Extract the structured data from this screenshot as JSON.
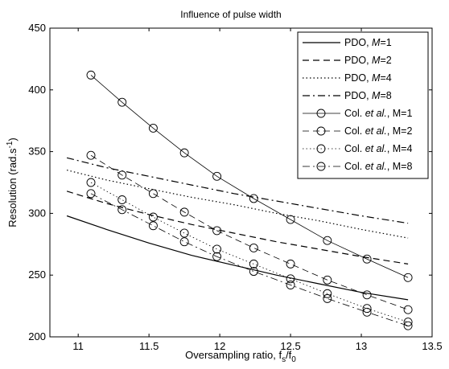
{
  "chart_data": {
    "type": "line",
    "title": "Influence of pulse width",
    "xlabel": {
      "main": "Oversampling ratio, f",
      "sub1": "s",
      "mid": "/f",
      "sub2": "0"
    },
    "ylabel": {
      "main": "Resolution (rad.s",
      "sup": "-1",
      "end": ")"
    },
    "xlim": [
      10.8,
      13.5
    ],
    "ylim": [
      200,
      450
    ],
    "xticks": [
      11,
      11.5,
      12,
      12.5,
      13,
      13.5
    ],
    "xtick_labels": [
      "11",
      "11.5",
      "12",
      "12.5",
      "13",
      "13.5"
    ],
    "yticks": [
      200,
      250,
      300,
      350,
      400,
      450
    ],
    "ytick_labels": [
      "200",
      "250",
      "300",
      "350",
      "400",
      "450"
    ],
    "grid": false,
    "legend_position": "top-right",
    "legend": [
      {
        "name": "PDO, ",
        "italic": "M",
        "suffix": "=1"
      },
      {
        "name": "PDO, ",
        "italic": "M",
        "suffix": "=2"
      },
      {
        "name": "PDO, ",
        "italic": "M",
        "suffix": "=4"
      },
      {
        "name": "PDO, ",
        "italic": "M",
        "suffix": "=8"
      },
      {
        "name": "Col. ",
        "italic": "et al.",
        "suffix": ", M=1"
      },
      {
        "name": "Col. ",
        "italic": "et al.",
        "suffix": ", M=2"
      },
      {
        "name": "Col. ",
        "italic": "et al.",
        "suffix": ", M=4"
      },
      {
        "name": "Col. ",
        "italic": "et al.",
        "suffix": ", M=8"
      }
    ],
    "series": [
      {
        "style": "solid",
        "marker": false,
        "x": [
          10.92,
          11.2,
          11.5,
          11.8,
          12.1,
          12.4,
          12.7,
          13.0,
          13.33
        ],
        "y": [
          298,
          287,
          276,
          266,
          258,
          250,
          243,
          236,
          230
        ]
      },
      {
        "style": "dashed",
        "marker": false,
        "x": [
          10.92,
          11.2,
          11.5,
          11.8,
          12.1,
          12.4,
          12.7,
          13.0,
          13.33
        ],
        "y": [
          318,
          308,
          299,
          291,
          284,
          277,
          271,
          265,
          259
        ]
      },
      {
        "style": "dotted",
        "marker": false,
        "x": [
          10.92,
          11.2,
          11.5,
          11.8,
          12.1,
          12.4,
          12.7,
          13.0,
          13.33
        ],
        "y": [
          335,
          327,
          320,
          313,
          307,
          300,
          294,
          287,
          280
        ]
      },
      {
        "style": "dashdot",
        "marker": false,
        "x": [
          10.92,
          11.2,
          11.5,
          11.8,
          12.1,
          12.4,
          12.7,
          13.0,
          13.33
        ],
        "y": [
          345,
          337,
          330,
          323,
          316,
          310,
          304,
          298,
          292
        ]
      },
      {
        "style": "solid",
        "marker": true,
        "x": [
          11.09,
          11.31,
          11.53,
          11.75,
          11.98,
          12.24,
          12.5,
          12.76,
          13.04,
          13.33
        ],
        "y": [
          412,
          390,
          369,
          349,
          330,
          312,
          295,
          278,
          263,
          248
        ]
      },
      {
        "style": "dashed",
        "marker": true,
        "x": [
          11.09,
          11.31,
          11.53,
          11.75,
          11.98,
          12.24,
          12.5,
          12.76,
          13.04,
          13.33
        ],
        "y": [
          347,
          331,
          316,
          301,
          286,
          272,
          259,
          246,
          234,
          222
        ]
      },
      {
        "style": "dotted",
        "marker": true,
        "x": [
          11.09,
          11.31,
          11.53,
          11.75,
          11.98,
          12.24,
          12.5,
          12.76,
          13.04,
          13.33
        ],
        "y": [
          325,
          311,
          297,
          284,
          271,
          259,
          247,
          235,
          223,
          212
        ]
      },
      {
        "style": "dashdot",
        "marker": true,
        "x": [
          11.09,
          11.31,
          11.53,
          11.75,
          11.98,
          12.24,
          12.5,
          12.76,
          13.04,
          13.33
        ],
        "y": [
          316,
          303,
          290,
          277,
          265,
          253,
          242,
          231,
          220,
          209
        ]
      }
    ]
  }
}
